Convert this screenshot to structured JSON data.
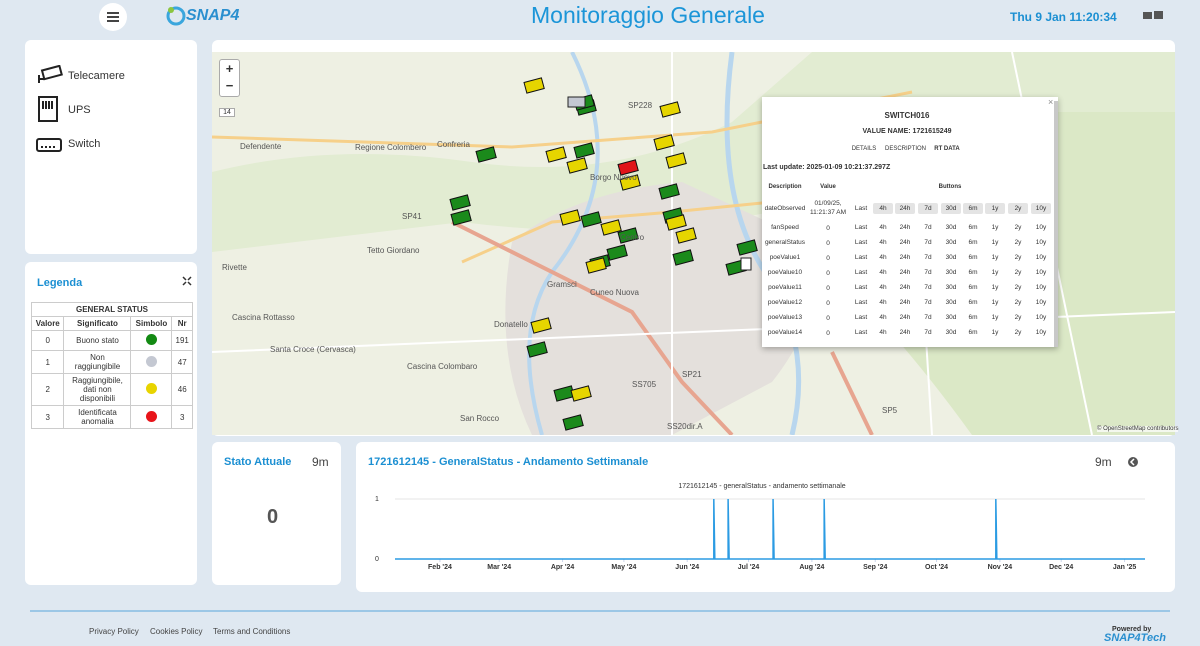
{
  "header": {
    "logo": "SNAP4",
    "title": "Monitoraggio Generale",
    "datetime": "Thu 9 Jan 11:20:34"
  },
  "menu": {
    "items": [
      "Telecamere",
      "UPS",
      "Switch"
    ]
  },
  "legend": {
    "title": "Legenda",
    "caption": "GENERAL STATUS",
    "columns": [
      "Valore",
      "Significato",
      "Simbolo",
      "Nr"
    ],
    "rows": [
      {
        "value": 0,
        "meaning": "Buono stato",
        "color": "#138a13",
        "count": 191
      },
      {
        "value": 1,
        "meaning": "Non raggiungibile",
        "color": "#c4c8d2",
        "count": 47
      },
      {
        "value": 2,
        "meaning": "Raggiungibile, dati non disponibili",
        "color": "#e8d400",
        "count": 46
      },
      {
        "value": 3,
        "meaning": "Identificata anomalia",
        "color": "#e8141a",
        "count": 3
      }
    ]
  },
  "map": {
    "zoom_in": "+",
    "zoom_out": "−",
    "zoom_level": "14",
    "places": [
      "Confreria",
      "Regione Colombero",
      "Defendente",
      "Tetto Giordano",
      "Gramsci",
      "Cuneo Nuova",
      "Donatello",
      "Santa Croce (Cervasca)",
      "Cascina Colombaro",
      "San Rocco",
      "Centro",
      "Borgo Nuovo",
      "Cascina Rottasso",
      "Rivette",
      "SP41",
      "SP228",
      "SS705",
      "SP21",
      "SP5",
      "SS20dir.A"
    ],
    "attribution": "© OpenStreetMap contributors"
  },
  "popup": {
    "title": "SWITCH016",
    "value_name": "VALUE NAME: 1721615249",
    "tabs": [
      "DETAILS",
      "DESCRIPTION",
      "RT DATA"
    ],
    "last_update": "Last update: 2025-01-09 10:21:37.297Z",
    "columns": [
      "Description",
      "Value",
      "Buttons"
    ],
    "buttons": [
      "Last",
      "4h",
      "24h",
      "7d",
      "30d",
      "6m",
      "1y",
      "2y",
      "10y"
    ],
    "rows": [
      {
        "name": "dateObserved",
        "value": "01/09/25, 11:21:37 AM"
      },
      {
        "name": "fanSpeed",
        "value": 0
      },
      {
        "name": "generalStatus",
        "value": 0
      },
      {
        "name": "poeValue1",
        "value": 0
      },
      {
        "name": "poeValue10",
        "value": 0
      },
      {
        "name": "poeValue11",
        "value": 0
      },
      {
        "name": "poeValue12",
        "value": 0
      },
      {
        "name": "poeValue13",
        "value": 0
      },
      {
        "name": "poeValue14",
        "value": 0
      }
    ]
  },
  "status_widget": {
    "title": "Stato Attuale",
    "age": "9m",
    "value": 0
  },
  "trend_widget": {
    "title": "1721612145 - GeneralStatus - Andamento Settimanale",
    "age": "9m"
  },
  "chart_data": {
    "type": "line",
    "title": "1721612145 - generalStatus - andamento settimanale",
    "x": [
      9,
      165,
      165,
      165.5,
      172,
      172,
      172.5,
      194,
      194,
      194.5,
      219,
      219,
      219.5,
      303,
      303,
      303.5,
      376
    ],
    "values": [
      0,
      0,
      1,
      0,
      0,
      1,
      0,
      0,
      1,
      0,
      0,
      1,
      0,
      0,
      1,
      0,
      0
    ],
    "color": "#2b9be3",
    "xlim": [
      9,
      376
    ],
    "xticks": [
      {
        "value": 31,
        "label": "Feb '24"
      },
      {
        "value": 60,
        "label": "Mar '24"
      },
      {
        "value": 91,
        "label": "Apr '24"
      },
      {
        "value": 121,
        "label": "May '24"
      },
      {
        "value": 152,
        "label": "Jun '24"
      },
      {
        "value": 182,
        "label": "Jul '24"
      },
      {
        "value": 213,
        "label": "Aug '24"
      },
      {
        "value": 244,
        "label": "Sep '24"
      },
      {
        "value": 274,
        "label": "Oct '24"
      },
      {
        "value": 305,
        "label": "Nov '24"
      },
      {
        "value": 335,
        "label": "Dec '24"
      },
      {
        "value": 366,
        "label": "Jan '25"
      }
    ],
    "ylim": [
      0,
      1
    ],
    "yticks": [
      0,
      1
    ],
    "grid": true
  },
  "footer": {
    "links": [
      "Privacy Policy",
      "Cookies Policy",
      "Terms and Conditions"
    ],
    "powered": "Powered by",
    "brand": "SNAP4Tech"
  }
}
